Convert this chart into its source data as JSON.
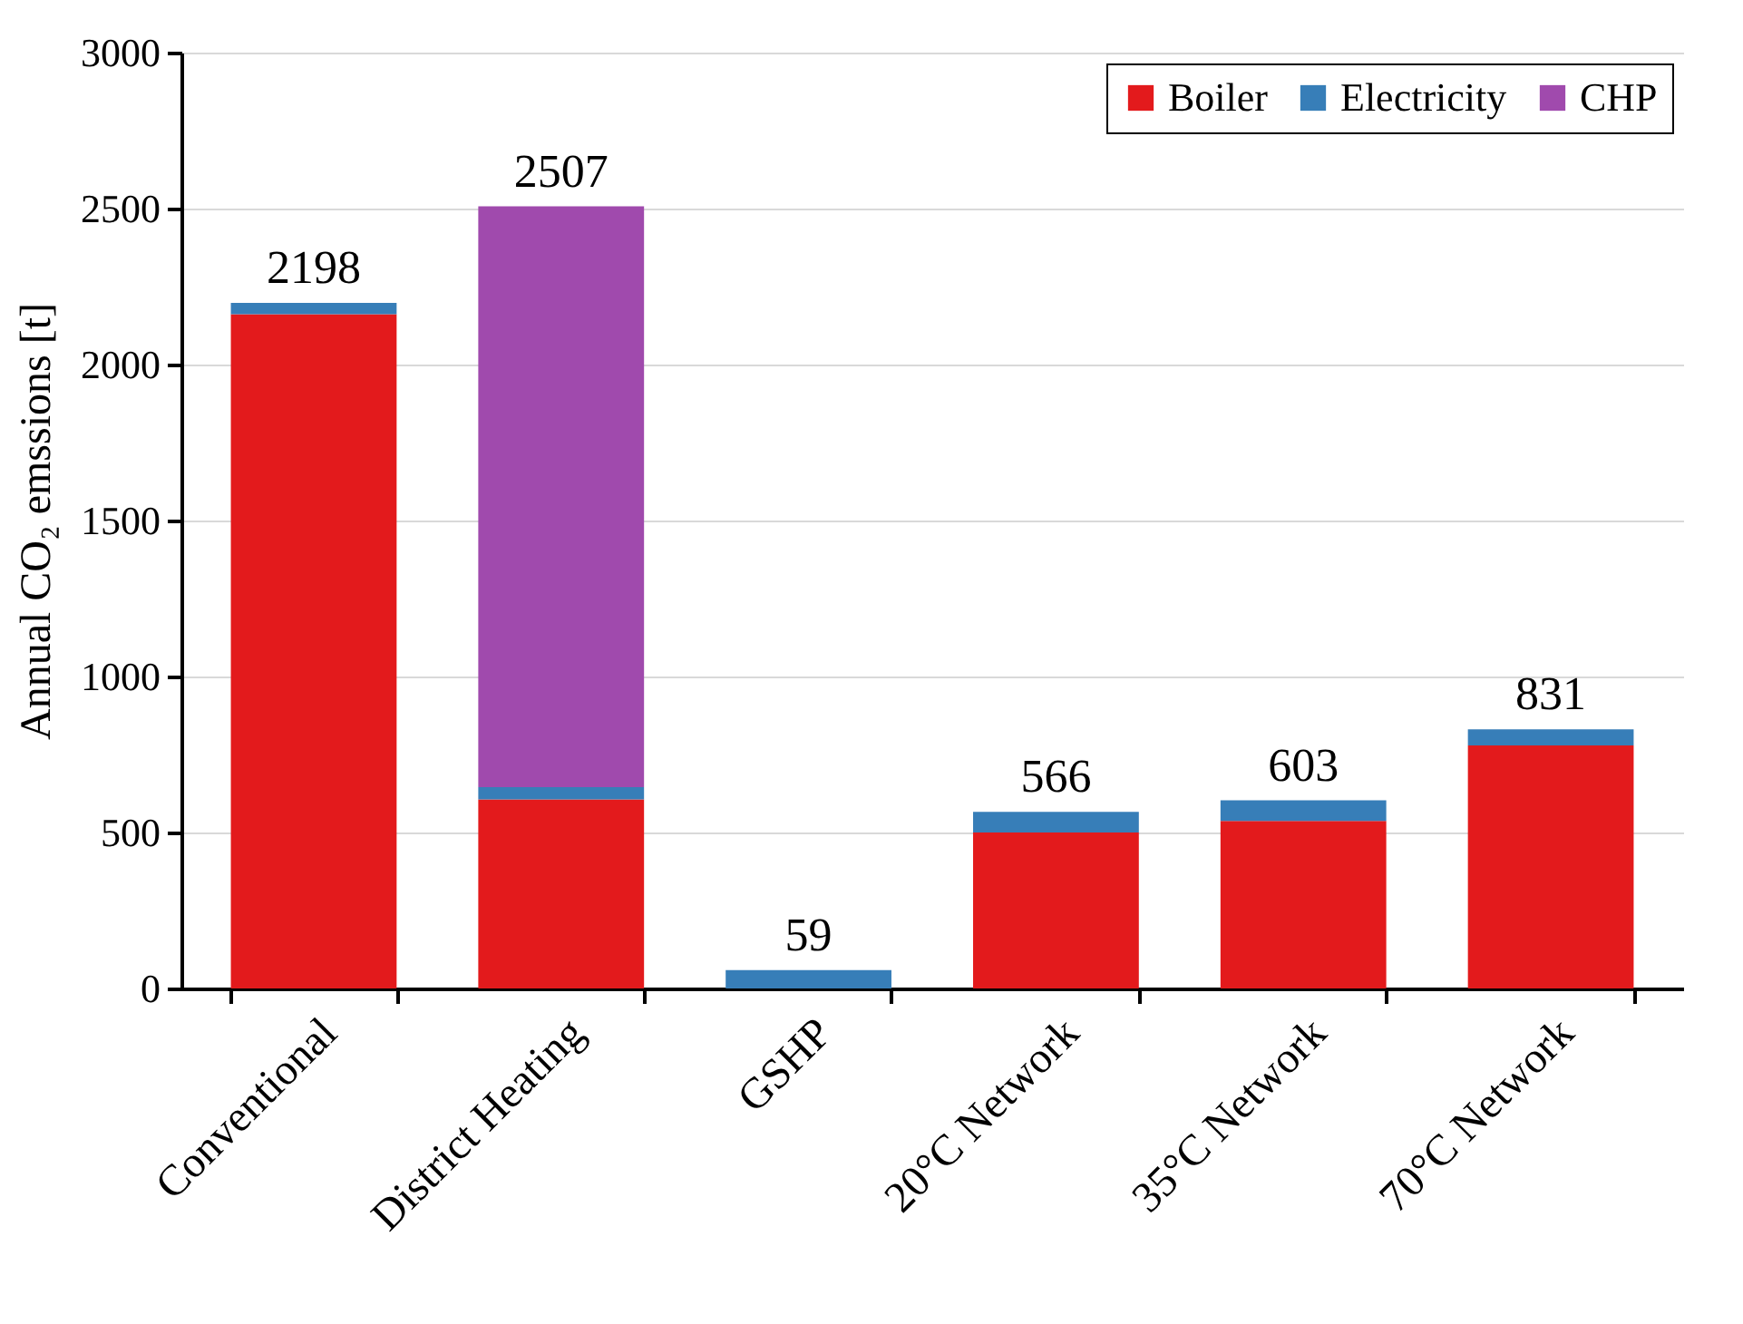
{
  "chart_data": {
    "type": "bar",
    "stacked": true,
    "ylabel": "Annual CO₂ emssions [t]",
    "categories": [
      "Conventional",
      "District Heating",
      "GSHP",
      "20°C Network",
      "35°C Network",
      "70°C Network"
    ],
    "series": [
      {
        "name": "Boiler",
        "color": "#e31a1c",
        "values": [
          2161,
          606,
          null,
          500,
          537,
          779
        ]
      },
      {
        "name": "Electricity",
        "color": "#377eb8",
        "values": [
          37,
          39,
          59,
          66,
          66,
          52
        ]
      },
      {
        "name": "CHP",
        "color": "#a04aad",
        "values": [
          null,
          1862,
          null,
          null,
          null,
          null
        ]
      }
    ],
    "totals": [
      "2198",
      "2507",
      "59",
      "566",
      "603",
      "831"
    ],
    "ylim": [
      0,
      3000
    ],
    "yticks": [
      0,
      500,
      1000,
      1500,
      2000,
      2500,
      3000
    ],
    "grid": "y",
    "legend": "top right"
  }
}
